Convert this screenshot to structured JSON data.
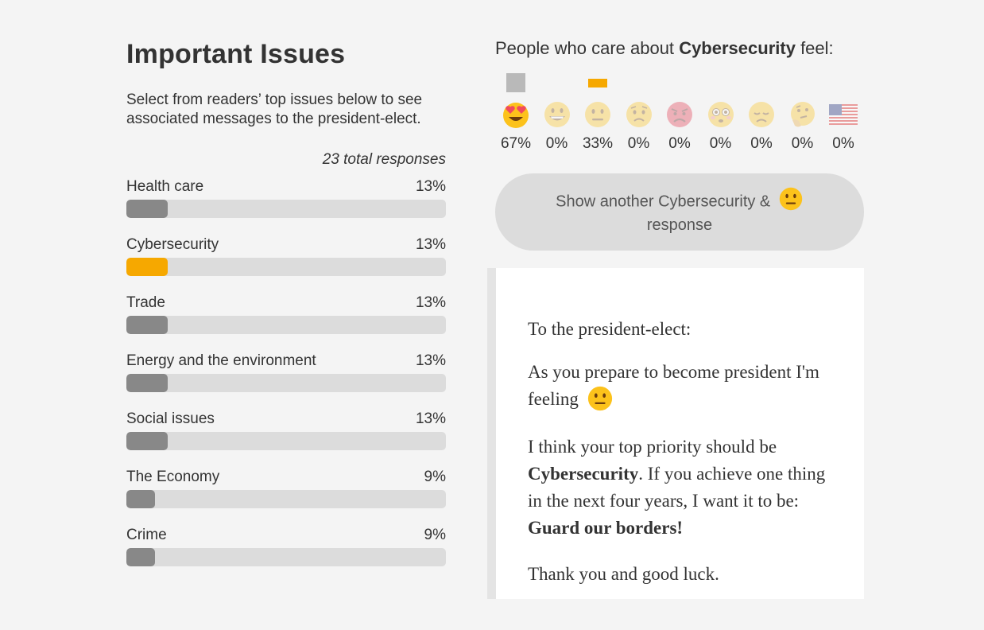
{
  "left": {
    "title": "Important Issues",
    "intro": "Select from readers’ top issues below to see associated messages to the president-elect.",
    "total_responses": "23 total responses",
    "issues": [
      {
        "label": "Health care",
        "pct_label": "13%",
        "fraction": 0.13,
        "selected": false
      },
      {
        "label": "Cybersecurity",
        "pct_label": "13%",
        "fraction": 0.13,
        "selected": true
      },
      {
        "label": "Trade",
        "pct_label": "13%",
        "fraction": 0.13,
        "selected": false
      },
      {
        "label": "Energy and the environment",
        "pct_label": "13%",
        "fraction": 0.13,
        "selected": false
      },
      {
        "label": "Social issues",
        "pct_label": "13%",
        "fraction": 0.13,
        "selected": false
      },
      {
        "label": "The Economy",
        "pct_label": "9%",
        "fraction": 0.09,
        "selected": false
      },
      {
        "label": "Crime",
        "pct_label": "9%",
        "fraction": 0.09,
        "selected": false
      }
    ]
  },
  "right": {
    "feel_prefix": "People who care about",
    "feel_issue": "Cybersecurity",
    "feel_suffix": "feel:",
    "emotions": [
      {
        "icon": "heart-eyes-emoji-icon",
        "pct": "67%",
        "marker": "gray-square"
      },
      {
        "icon": "grinning-emoji-icon",
        "pct": "0%",
        "marker": ""
      },
      {
        "icon": "neutral-emoji-icon",
        "pct": "33%",
        "marker": "orange-bar"
      },
      {
        "icon": "worried-emoji-icon",
        "pct": "0%",
        "marker": ""
      },
      {
        "icon": "angry-emoji-icon",
        "pct": "0%",
        "marker": ""
      },
      {
        "icon": "flushed-emoji-icon",
        "pct": "0%",
        "marker": ""
      },
      {
        "icon": "disappointed-emoji-icon",
        "pct": "0%",
        "marker": ""
      },
      {
        "icon": "thinking-emoji-icon",
        "pct": "0%",
        "marker": ""
      },
      {
        "icon": "us-flag-icon",
        "pct": "0%",
        "marker": ""
      }
    ],
    "another_button": {
      "prefix": "Show another Cybersecurity &",
      "suffix": "response"
    },
    "letter": {
      "greeting": "To the president-elect:",
      "line1": "As you prepare to become president I'm feeling",
      "line2_prefix": "I think your top priority should be",
      "priority": "Cybersecurity",
      "line2_mid": ". If you achieve one thing in the next four years, I want it to be:",
      "wish": "Guard our borders!",
      "closing": "Thank you and good luck."
    }
  },
  "colors": {
    "accent": "#f6a800",
    "bar_fill": "#888888",
    "bar_track": "#dcdcdc",
    "background": "#f4f4f4",
    "marker_gray": "#b9b9b9"
  }
}
